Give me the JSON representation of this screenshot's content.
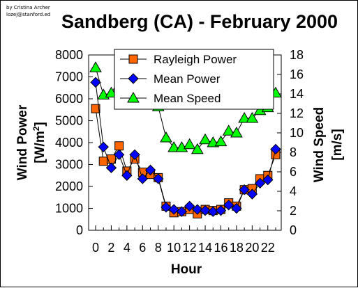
{
  "credit_lines": [
    "by Cristina Archer",
    "lozej@stanford.ed"
  ],
  "chart_data": {
    "type": "line",
    "title": "Sandberg (CA) - February 2000",
    "xlabel": "Hour",
    "ylabel_left": "Wind Power [W/m²]",
    "ylabel_left_main": "Wind Power",
    "ylabel_left_unit": "[W/m",
    "ylabel_left_sup": "2",
    "ylabel_left_close": "]",
    "ylabel_right": "Wind Speed [m/s]",
    "ylabel_right_main": "Wind Speed",
    "ylabel_right_unit": "[m/s]",
    "xlim": [
      0,
      23
    ],
    "ylim_left": [
      0,
      8000
    ],
    "ylim_right": [
      0,
      18
    ],
    "x_ticks": [
      0,
      2,
      4,
      6,
      8,
      10,
      12,
      14,
      16,
      18,
      20,
      22
    ],
    "y_ticks_left": [
      0,
      1000,
      2000,
      3000,
      4000,
      5000,
      6000,
      7000,
      8000
    ],
    "y_ticks_right": [
      0,
      2,
      4,
      6,
      8,
      10,
      12,
      14,
      16,
      18
    ],
    "x": [
      0,
      1,
      2,
      3,
      4,
      5,
      6,
      7,
      8,
      9,
      10,
      11,
      12,
      13,
      14,
      15,
      16,
      17,
      18,
      19,
      20,
      21,
      22,
      23
    ],
    "series": [
      {
        "name": "Rayleigh Power",
        "axis": "left",
        "marker": "square",
        "color": "#ff6600",
        "values": [
          5550,
          3150,
          3250,
          3850,
          2700,
          3250,
          2650,
          2550,
          2400,
          1100,
          800,
          850,
          950,
          750,
          950,
          900,
          950,
          1250,
          1100,
          1850,
          1900,
          2350,
          2500,
          3450
        ]
      },
      {
        "name": "Mean Power",
        "axis": "left",
        "marker": "diamond",
        "color": "#0000ff",
        "values": [
          6750,
          3800,
          2850,
          3450,
          2500,
          3450,
          2350,
          2750,
          2350,
          1050,
          950,
          850,
          1100,
          950,
          900,
          850,
          900,
          1150,
          1000,
          1850,
          1650,
          2150,
          2300,
          3700
        ]
      },
      {
        "name": "Mean Speed",
        "axis": "right",
        "marker": "triangle",
        "color": "#00ff00",
        "values": [
          16.7,
          13.9,
          14.1,
          14.9,
          13.6,
          14.8,
          13.5,
          13.2,
          12.7,
          9.5,
          8.5,
          8.5,
          8.8,
          8.3,
          9.3,
          9.0,
          9.1,
          10.2,
          10.0,
          11.5,
          11.5,
          12.3,
          12.6,
          14.1
        ]
      }
    ],
    "legend": {
      "position": "top-center",
      "entries": [
        "Rayleigh Power",
        "Mean Power",
        "Mean Speed"
      ]
    },
    "grid": false
  }
}
